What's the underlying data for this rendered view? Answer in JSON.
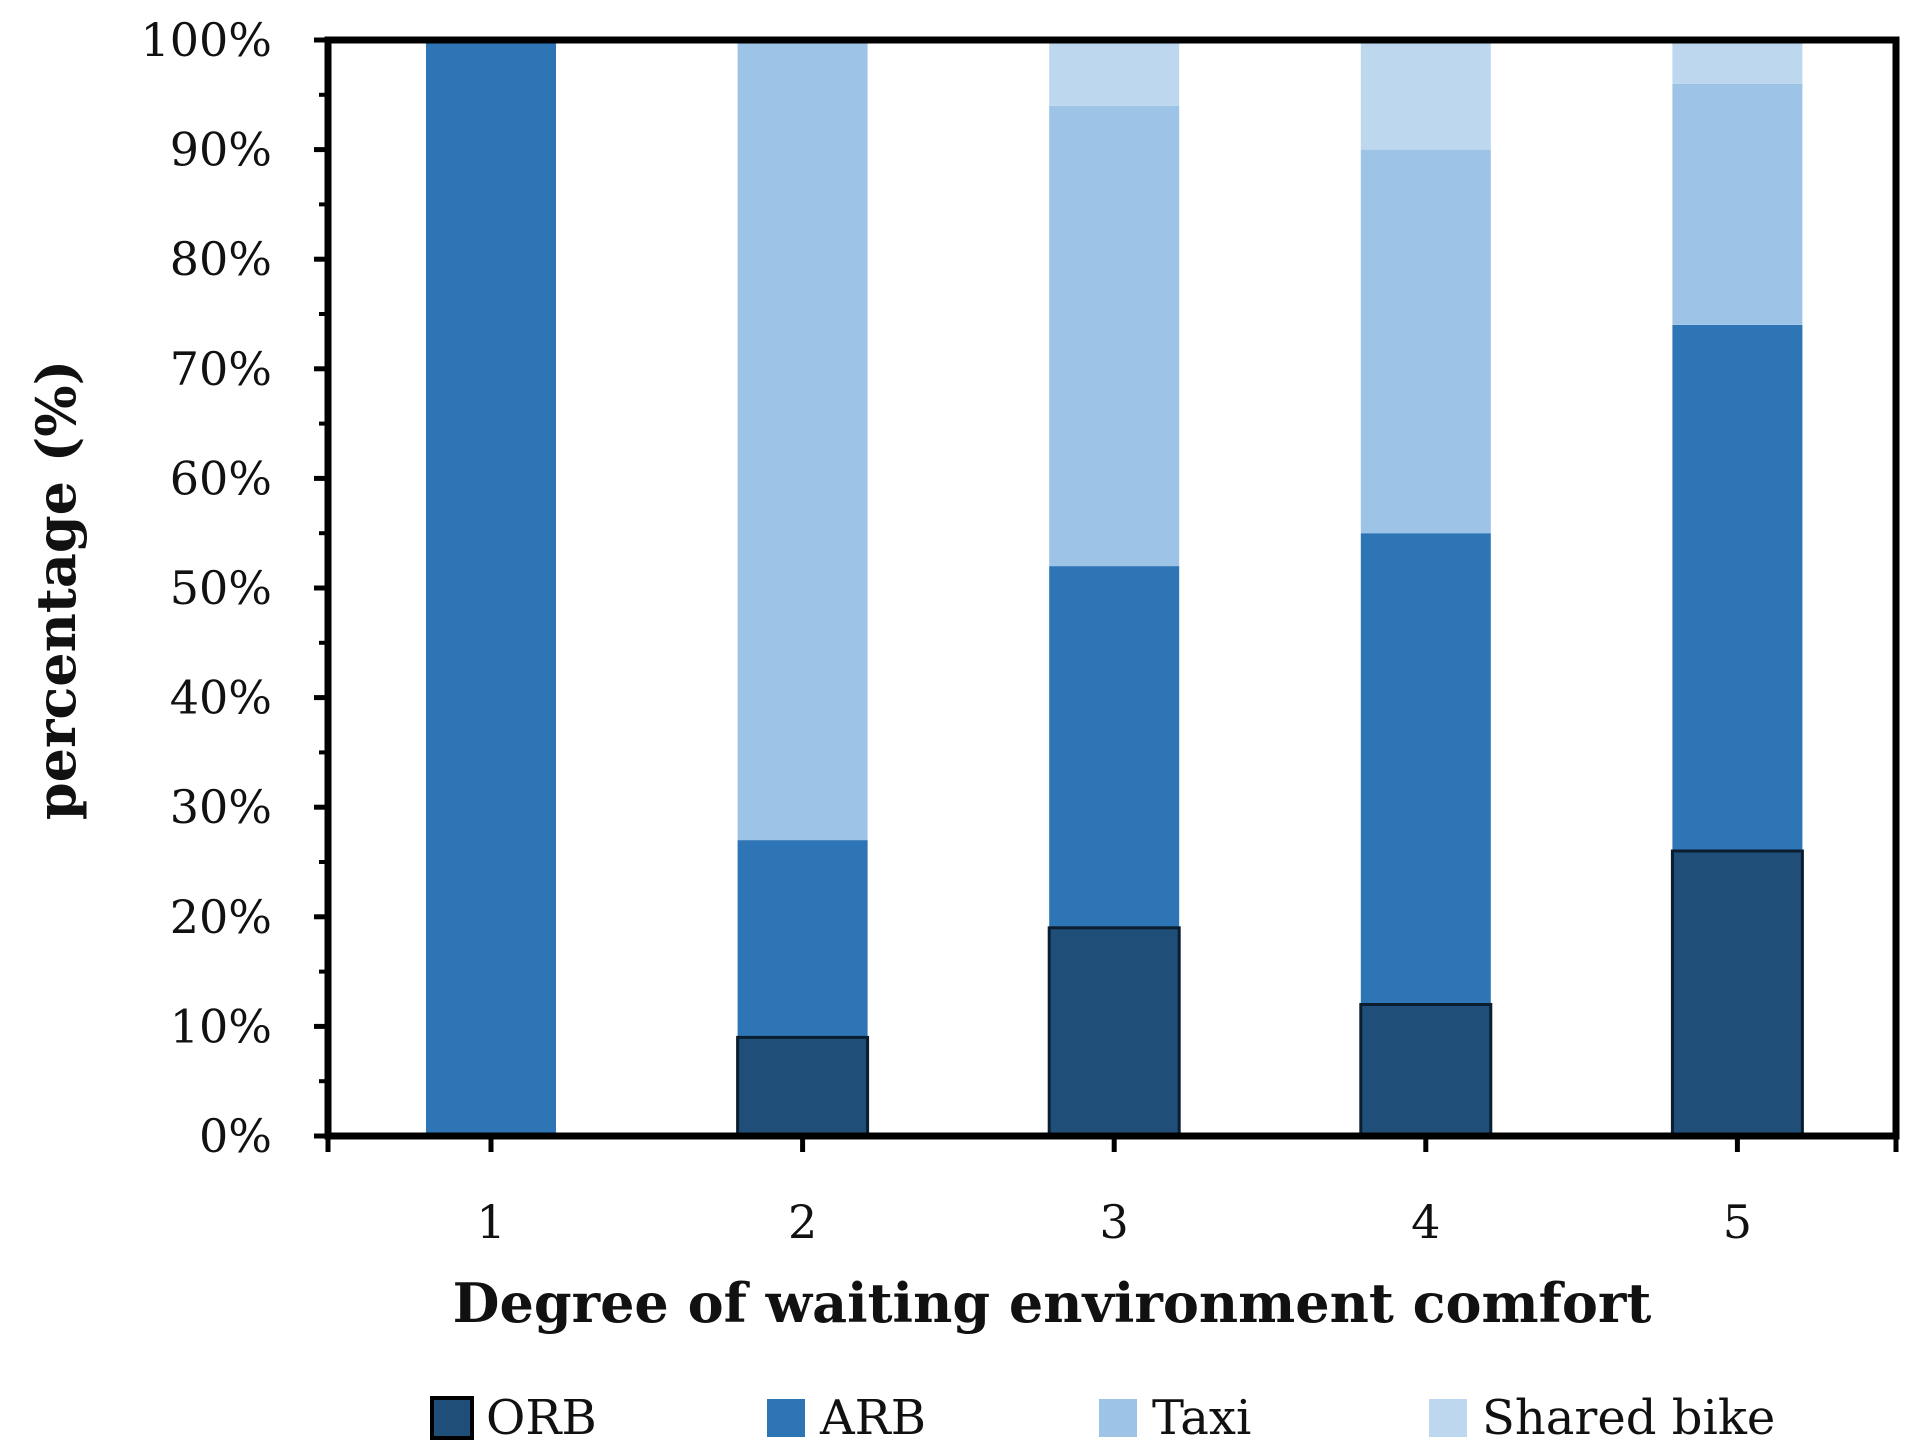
{
  "chart_data": {
    "type": "bar",
    "stacked": true,
    "categories": [
      "1",
      "2",
      "3",
      "4",
      "5"
    ],
    "series": [
      {
        "name": "ORB",
        "color": "#1f4e79",
        "values": [
          0,
          9,
          19,
          12,
          26
        ]
      },
      {
        "name": "ARB",
        "color": "#2e75b6",
        "values": [
          100,
          18,
          33,
          43,
          48
        ]
      },
      {
        "name": "Taxi",
        "color": "#9dc3e6",
        "values": [
          0,
          73,
          42,
          35,
          22
        ]
      },
      {
        "name": "Shared bike",
        "color": "#bdd7ee",
        "values": [
          0,
          0,
          6,
          10,
          4
        ]
      }
    ],
    "xlabel": "Degree of waiting environment comfort",
    "ylabel": "percentage (%)",
    "ylim": [
      0,
      100
    ],
    "ytick_labels": [
      "0%",
      "10%",
      "20%",
      "30%",
      "40%",
      "50%",
      "60%",
      "70%",
      "80%",
      "90%",
      "100%"
    ],
    "grid": false,
    "legend_position": "bottom"
  }
}
